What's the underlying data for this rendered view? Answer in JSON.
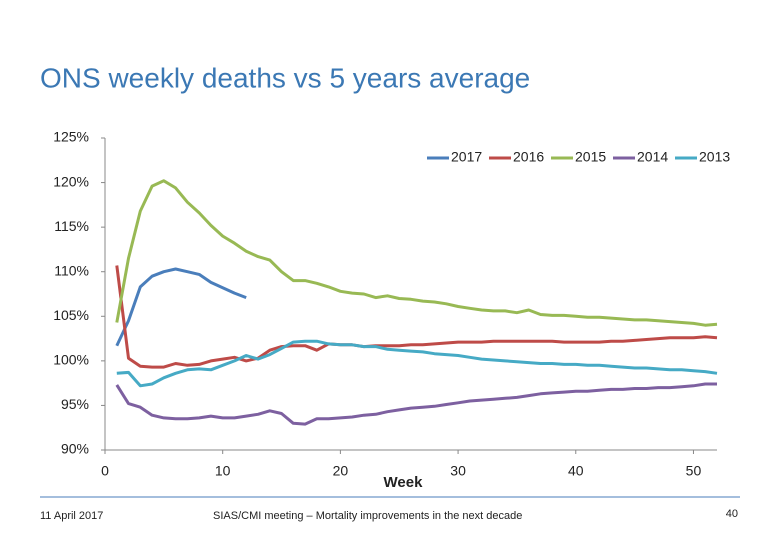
{
  "chart_data": {
    "type": "line",
    "title": "ONS weekly deaths vs 5 years average",
    "x_label": "Week",
    "x": [
      1,
      2,
      3,
      4,
      5,
      6,
      7,
      8,
      9,
      10,
      11,
      12,
      13,
      14,
      15,
      16,
      17,
      18,
      19,
      20,
      21,
      22,
      23,
      24,
      25,
      26,
      27,
      28,
      29,
      30,
      31,
      32,
      33,
      34,
      35,
      36,
      37,
      38,
      39,
      40,
      41,
      42,
      43,
      44,
      45,
      46,
      47,
      48,
      49,
      50,
      51,
      52
    ],
    "series": [
      {
        "name": "2017",
        "color": "#4a7ebb",
        "values": [
          101.7,
          104.5,
          108.3,
          109.5,
          110.0,
          110.3,
          110.0,
          109.7,
          108.8,
          108.2,
          107.6,
          107.1,
          null,
          null,
          null,
          null,
          null,
          null,
          null,
          null,
          null,
          null,
          null,
          null,
          null,
          null,
          null,
          null,
          null,
          null,
          null,
          null,
          null,
          null,
          null,
          null,
          null,
          null,
          null,
          null,
          null,
          null,
          null,
          null,
          null,
          null,
          null,
          null,
          null,
          null,
          null,
          null
        ]
      },
      {
        "name": "2016",
        "color": "#be4b48",
        "values": [
          110.7,
          100.3,
          99.4,
          99.3,
          99.3,
          99.7,
          99.5,
          99.6,
          100.0,
          100.2,
          100.4,
          100.0,
          100.3,
          101.2,
          101.6,
          101.7,
          101.7,
          101.2,
          101.9,
          101.8,
          101.8,
          101.6,
          101.7,
          101.7,
          101.7,
          101.8,
          101.8,
          101.9,
          102.0,
          102.1,
          102.1,
          102.1,
          102.2,
          102.2,
          102.2,
          102.2,
          102.2,
          102.2,
          102.1,
          102.1,
          102.1,
          102.1,
          102.2,
          102.2,
          102.3,
          102.4,
          102.5,
          102.6,
          102.6,
          102.6,
          102.7,
          102.6
        ]
      },
      {
        "name": "2015",
        "color": "#98b954",
        "values": [
          104.3,
          111.5,
          116.8,
          119.6,
          120.2,
          119.4,
          117.8,
          116.6,
          115.2,
          114.0,
          113.2,
          112.3,
          111.7,
          111.3,
          110.0,
          109.0,
          109.0,
          108.7,
          108.3,
          107.8,
          107.6,
          107.5,
          107.1,
          107.3,
          107.0,
          106.9,
          106.7,
          106.6,
          106.4,
          106.1,
          105.9,
          105.7,
          105.6,
          105.6,
          105.4,
          105.7,
          105.2,
          105.1,
          105.1,
          105.0,
          104.9,
          104.9,
          104.8,
          104.7,
          104.6,
          104.6,
          104.5,
          104.4,
          104.3,
          104.2,
          104.0,
          104.1
        ]
      },
      {
        "name": "2014",
        "color": "#7d60a0",
        "values": [
          97.3,
          95.2,
          94.8,
          93.9,
          93.6,
          93.5,
          93.5,
          93.6,
          93.8,
          93.6,
          93.6,
          93.8,
          94.0,
          94.4,
          94.1,
          93.0,
          92.9,
          93.5,
          93.5,
          93.6,
          93.7,
          93.9,
          94.0,
          94.3,
          94.5,
          94.7,
          94.8,
          94.9,
          95.1,
          95.3,
          95.5,
          95.6,
          95.7,
          95.8,
          95.9,
          96.1,
          96.3,
          96.4,
          96.5,
          96.6,
          96.6,
          96.7,
          96.8,
          96.8,
          96.9,
          96.9,
          97.0,
          97.0,
          97.1,
          97.2,
          97.4,
          97.4
        ]
      },
      {
        "name": "2013",
        "color": "#46aac5",
        "values": [
          98.6,
          98.7,
          97.2,
          97.4,
          98.1,
          98.6,
          99.0,
          99.1,
          99.0,
          99.5,
          100.0,
          100.6,
          100.2,
          100.7,
          101.4,
          102.1,
          102.2,
          102.2,
          101.9,
          101.8,
          101.8,
          101.6,
          101.6,
          101.3,
          101.2,
          101.1,
          101.0,
          100.8,
          100.7,
          100.6,
          100.4,
          100.2,
          100.1,
          100.0,
          99.9,
          99.8,
          99.7,
          99.7,
          99.6,
          99.6,
          99.5,
          99.5,
          99.4,
          99.3,
          99.2,
          99.2,
          99.1,
          99.0,
          99.0,
          98.9,
          98.8,
          98.6
        ]
      }
    ],
    "xlim": [
      0,
      52
    ],
    "xticks": [
      0,
      10,
      20,
      30,
      40,
      50
    ],
    "ylim": [
      90,
      125
    ],
    "yticks": [
      {
        "value": 90,
        "label": "90%"
      },
      {
        "value": 95,
        "label": "95%"
      },
      {
        "value": 100,
        "label": "100%"
      },
      {
        "value": 105,
        "label": "105%"
      },
      {
        "value": 110,
        "label": "110%"
      },
      {
        "value": 115,
        "label": "115%"
      },
      {
        "value": 120,
        "label": "120%"
      },
      {
        "value": 125,
        "label": "125%"
      }
    ],
    "grid": false,
    "legend": "top-right"
  },
  "footer": {
    "date": "11 April 2017",
    "text": "SIAS/CMI meeting – Mortality improvements in the next decade",
    "page": "40"
  }
}
